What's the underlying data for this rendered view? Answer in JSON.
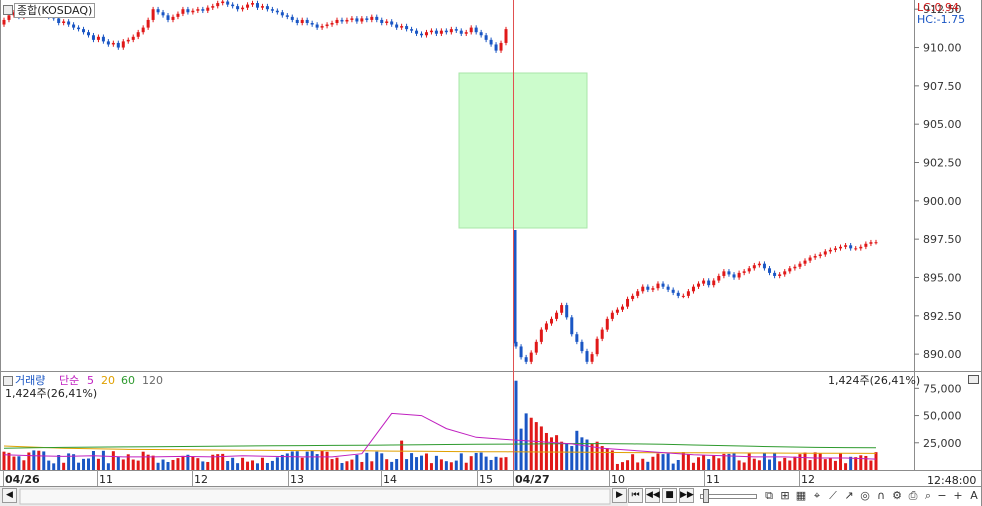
{
  "chart_data": [
    {
      "type": "candlestick",
      "name": "종합(KOSDAQ)",
      "legend": [
        "LC:0.94",
        "HC:-1.75"
      ],
      "y_ticks": [
        "912.50",
        "910.00",
        "907.50",
        "905.00",
        "902.50",
        "900.00",
        "897.50",
        "895.00",
        "892.50",
        "890.00"
      ],
      "ylim": [
        888.9,
        913.1
      ],
      "colors": {
        "up": "#e01818",
        "down": "#1a56c4"
      },
      "sessions": [
        {
          "date": "04/26",
          "close": [
            911.8,
            912.1,
            912.3,
            912.0,
            912.4,
            912.6,
            912.2,
            912.5,
            912.3,
            912.0,
            911.9,
            911.6,
            911.7,
            911.5,
            911.3,
            911.2,
            911.0,
            910.8,
            910.5,
            910.7,
            910.4,
            910.2,
            910.3,
            910.0,
            910.4,
            910.5,
            910.7,
            911.0,
            911.3,
            911.8,
            912.5,
            912.3,
            912.1,
            911.8,
            912.0,
            912.2,
            912.5,
            912.3,
            912.4,
            912.5,
            912.4,
            912.6,
            912.7,
            912.9,
            913.0,
            912.8,
            912.7,
            912.5,
            912.6,
            912.8,
            912.9,
            912.6,
            912.7,
            912.5,
            912.4,
            912.3,
            912.1,
            912.0,
            911.8,
            911.6,
            911.8,
            911.6,
            911.5,
            911.3,
            911.4,
            911.5,
            911.6,
            911.8,
            911.7,
            911.8,
            911.9,
            911.7,
            911.9,
            911.8,
            912.0,
            911.8,
            911.6,
            911.7,
            911.5,
            911.3,
            911.4,
            911.2,
            911.1,
            910.9,
            910.8,
            911.0,
            911.1,
            910.9,
            911.1,
            911.0,
            911.2,
            911.1,
            910.9,
            911.0,
            911.3,
            911.0,
            910.8,
            910.5,
            910.2,
            909.8,
            910.3,
            911.2
          ]
        },
        {
          "date": "04/27",
          "close": [
            890.5,
            889.8,
            889.5,
            890.1,
            890.8,
            891.6,
            892.0,
            892.3,
            892.7,
            893.2,
            892.4,
            891.3,
            890.8,
            890.2,
            889.5,
            890.0,
            891.0,
            891.6,
            892.3,
            892.7,
            892.9,
            893.1,
            893.6,
            893.8,
            894.1,
            894.4,
            894.2,
            894.3,
            894.6,
            894.4,
            894.2,
            894.0,
            893.8,
            893.8,
            894.1,
            894.4,
            894.6,
            894.8,
            894.5,
            894.8,
            895.1,
            895.4,
            895.2,
            895.0,
            895.3,
            895.4,
            895.6,
            895.8,
            895.9,
            895.6,
            895.3,
            895.1,
            895.2,
            895.4,
            895.6,
            895.7,
            895.9,
            896.1,
            896.3,
            896.4,
            896.5,
            896.7,
            896.8,
            896.9,
            897.0,
            897.1,
            896.9,
            896.9,
            897.0,
            897.2,
            897.3,
            897.3
          ]
        }
      ]
    },
    {
      "type": "bar",
      "name": "거래량",
      "indicators": [
        "단순",
        "5",
        "20",
        "60",
        "120"
      ],
      "indicator_colors": [
        "#c020c0",
        "#e0a000",
        "#2e9a2e",
        "#6a6a6a"
      ],
      "current": "1,424주(26,41%)",
      "y_ticks": [
        "75,000",
        "50,000",
        "25,000"
      ],
      "ylim": [
        0,
        90000
      ],
      "ma20": [
        22000,
        21000,
        20000,
        19500,
        19000,
        18800,
        18600,
        18400,
        18200,
        18000,
        17800,
        17600,
        17600,
        17400,
        17200,
        17000,
        16800,
        16700,
        16500,
        16400,
        16200,
        16000,
        15900,
        15800,
        15700,
        15600,
        15500,
        15400,
        15300,
        15200
      ],
      "ma60": [
        20000,
        20500,
        20800,
        21000,
        21200,
        21400,
        21600,
        21800,
        22000,
        22200,
        22400,
        22600,
        22800,
        23000,
        23200,
        23400,
        23600,
        23800,
        24000,
        24200,
        24200,
        24000,
        23600,
        23000,
        22400,
        21800,
        21200,
        20800,
        20600,
        20400
      ]
    }
  ],
  "x_labels": [
    "04/26",
    "11",
    "12",
    "13",
    "14",
    "15",
    "04/27",
    "10",
    "11",
    "12"
  ],
  "time_label": "12:48:00",
  "menu_icon": "square-menu-icon",
  "toolbar": {
    "scroll_left": "◀",
    "scroll_right": "▶",
    "first": "⏮",
    "prev": "◀◀",
    "stop": "■",
    "next": "▶▶",
    "zoom_in": "+",
    "zoom_out": "−",
    "text_tool": "A"
  }
}
